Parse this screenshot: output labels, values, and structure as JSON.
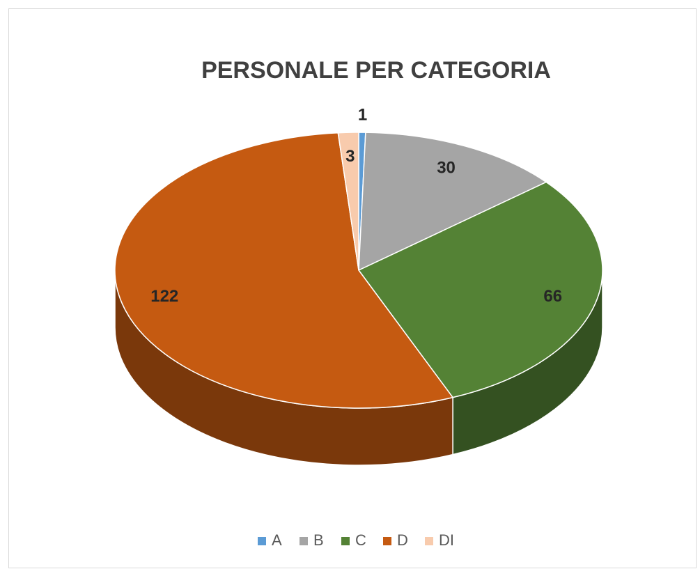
{
  "chart_data": {
    "type": "pie",
    "title": "PERSONALE PER CATEGORIA",
    "categories": [
      "A",
      "B",
      "C",
      "D",
      "DI"
    ],
    "values": [
      1,
      30,
      66,
      122,
      3
    ],
    "colors": [
      "#5b9bd5",
      "#a5a5a5",
      "#548235",
      "#c55a11",
      "#f8cbad"
    ],
    "legend": "bottom"
  }
}
